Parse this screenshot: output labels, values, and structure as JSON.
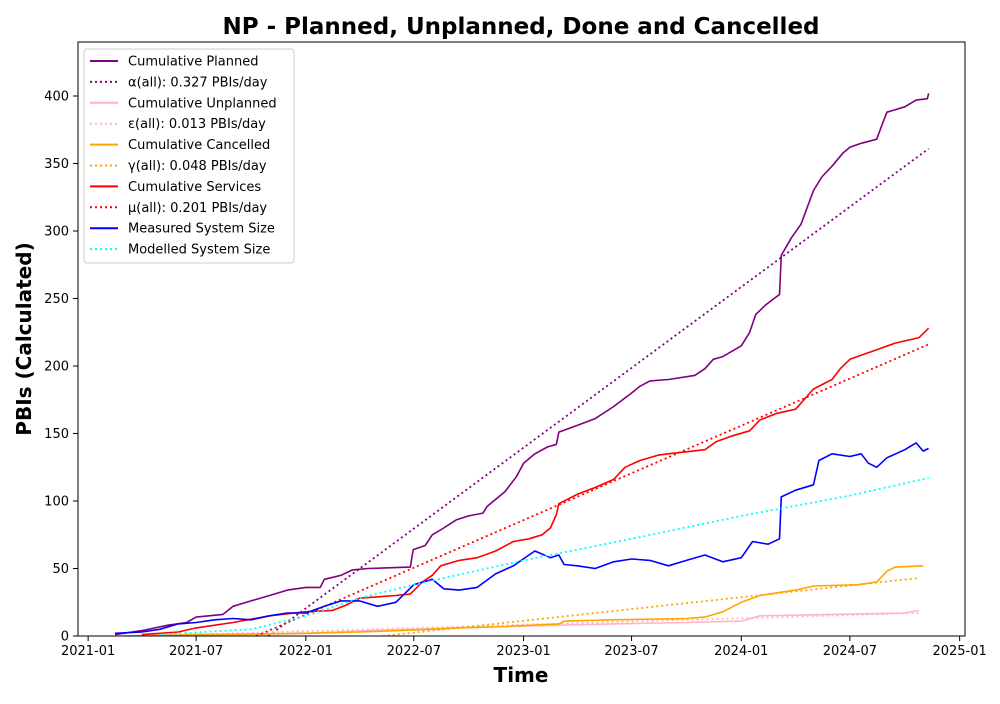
{
  "chart_data": {
    "type": "line",
    "title": "NP - Planned, Unplanned, Done  and Cancelled",
    "xlabel": "Time",
    "ylabel": "PBIs (Calculated)",
    "x_ticks": [
      "2021-01",
      "2021-07",
      "2022-01",
      "2022-07",
      "2023-01",
      "2023-07",
      "2024-01",
      "2024-07",
      "2025-01"
    ],
    "y_ticks": [
      "0",
      "50",
      "100",
      "150",
      "200",
      "250",
      "300",
      "350",
      "400"
    ],
    "xlim": [
      "2020-12-15",
      "2025-01-10"
    ],
    "ylim": [
      0,
      440
    ],
    "grid": false,
    "legend_position": "top-left",
    "series": [
      {
        "name": "Cumulative Planned",
        "color": "#800080",
        "style": "solid",
        "points": [
          [
            "2021-02-15",
            1
          ],
          [
            "2021-04-01",
            4
          ],
          [
            "2021-05-15",
            8
          ],
          [
            "2021-06-15",
            10
          ],
          [
            "2021-07-01",
            14
          ],
          [
            "2021-08-15",
            16
          ],
          [
            "2021-09-01",
            22
          ],
          [
            "2021-10-01",
            26
          ],
          [
            "2021-11-01",
            30
          ],
          [
            "2021-12-01",
            34
          ],
          [
            "2022-01-01",
            36
          ],
          [
            "2022-01-25",
            36
          ],
          [
            "2022-02-01",
            42
          ],
          [
            "2022-03-01",
            45
          ],
          [
            "2022-03-20",
            49
          ],
          [
            "2022-04-15",
            50
          ],
          [
            "2022-06-25",
            51
          ],
          [
            "2022-06-30",
            64
          ],
          [
            "2022-07-20",
            67
          ],
          [
            "2022-08-01",
            75
          ],
          [
            "2022-08-20",
            80
          ],
          [
            "2022-09-10",
            86
          ],
          [
            "2022-10-01",
            89
          ],
          [
            "2022-10-25",
            91
          ],
          [
            "2022-11-01",
            96
          ],
          [
            "2022-12-01",
            107
          ],
          [
            "2022-12-20",
            118
          ],
          [
            "2023-01-01",
            128
          ],
          [
            "2023-01-20",
            135
          ],
          [
            "2023-02-10",
            140
          ],
          [
            "2023-02-25",
            142
          ],
          [
            "2023-03-01",
            151
          ],
          [
            "2023-04-01",
            156
          ],
          [
            "2023-05-01",
            161
          ],
          [
            "2023-06-01",
            170
          ],
          [
            "2023-07-01",
            180
          ],
          [
            "2023-07-15",
            185
          ],
          [
            "2023-08-01",
            189
          ],
          [
            "2023-09-01",
            190
          ],
          [
            "2023-10-15",
            193
          ],
          [
            "2023-11-01",
            198
          ],
          [
            "2023-11-15",
            205
          ],
          [
            "2023-12-01",
            207
          ],
          [
            "2024-01-01",
            215
          ],
          [
            "2024-01-15",
            225
          ],
          [
            "2024-01-25",
            238
          ],
          [
            "2024-02-10",
            245
          ],
          [
            "2024-02-25",
            250
          ],
          [
            "2024-03-05",
            253
          ],
          [
            "2024-03-08",
            282
          ],
          [
            "2024-03-25",
            295
          ],
          [
            "2024-04-10",
            305
          ],
          [
            "2024-05-01",
            330
          ],
          [
            "2024-05-15",
            340
          ],
          [
            "2024-06-01",
            348
          ],
          [
            "2024-06-20",
            358
          ],
          [
            "2024-07-01",
            362
          ],
          [
            "2024-07-20",
            365
          ],
          [
            "2024-08-15",
            368
          ],
          [
            "2024-08-25",
            380
          ],
          [
            "2024-09-01",
            388
          ],
          [
            "2024-10-01",
            392
          ],
          [
            "2024-10-20",
            397
          ],
          [
            "2024-11-08",
            398
          ],
          [
            "2024-11-10",
            402
          ]
        ]
      },
      {
        "name": "α(all): 0.327 PBIs/day",
        "color": "#800080",
        "style": "dotted",
        "points": [
          [
            "2021-10-30",
            0
          ],
          [
            "2024-11-10",
            361
          ]
        ]
      },
      {
        "name": "Cumulative Unplanned",
        "color": "#ffb6c1",
        "style": "solid",
        "points": [
          [
            "2021-04-01",
            0
          ],
          [
            "2021-10-01",
            1
          ],
          [
            "2022-01-01",
            2
          ],
          [
            "2022-04-15",
            4
          ],
          [
            "2022-07-01",
            5
          ],
          [
            "2022-09-01",
            6
          ],
          [
            "2022-12-01",
            7
          ],
          [
            "2023-03-01",
            8
          ],
          [
            "2023-06-01",
            9
          ],
          [
            "2023-10-01",
            10
          ],
          [
            "2024-01-01",
            11
          ],
          [
            "2024-02-01",
            15
          ],
          [
            "2024-06-01",
            16
          ],
          [
            "2024-10-01",
            17
          ],
          [
            "2024-10-25",
            19
          ]
        ]
      },
      {
        "name": "ε(all): 0.013 PBIs/day",
        "color": "#ffb6c1",
        "style": "dotted",
        "points": [
          [
            "2021-04-01",
            0
          ],
          [
            "2024-10-25",
            17
          ]
        ]
      },
      {
        "name": "Cumulative Cancelled",
        "color": "#ffa500",
        "style": "solid",
        "points": [
          [
            "2021-03-01",
            0
          ],
          [
            "2021-07-01",
            1
          ],
          [
            "2022-01-01",
            2
          ],
          [
            "2022-04-01",
            3
          ],
          [
            "2022-08-01",
            5
          ],
          [
            "2022-09-15",
            6
          ],
          [
            "2022-12-01",
            7
          ],
          [
            "2023-03-01",
            9
          ],
          [
            "2023-03-10",
            11
          ],
          [
            "2023-06-01",
            12
          ],
          [
            "2023-10-01",
            13
          ],
          [
            "2023-11-01",
            14
          ],
          [
            "2023-12-01",
            18
          ],
          [
            "2024-01-01",
            25
          ],
          [
            "2024-02-01",
            30
          ],
          [
            "2024-03-01",
            32
          ],
          [
            "2024-04-01",
            34
          ],
          [
            "2024-05-01",
            37
          ],
          [
            "2024-07-15",
            38
          ],
          [
            "2024-08-15",
            40
          ],
          [
            "2024-09-01",
            48
          ],
          [
            "2024-09-15",
            51
          ],
          [
            "2024-11-01",
            52
          ]
        ]
      },
      {
        "name": "γ(all): 0.048 PBIs/day",
        "color": "#ffa500",
        "style": "dotted",
        "points": [
          [
            "2022-05-10",
            0
          ],
          [
            "2024-10-25",
            43
          ]
        ]
      },
      {
        "name": "Cumulative Services",
        "color": "#ff0000",
        "style": "solid",
        "points": [
          [
            "2021-04-01",
            1
          ],
          [
            "2021-06-01",
            3
          ],
          [
            "2021-07-01",
            6
          ],
          [
            "2021-09-01",
            10
          ],
          [
            "2021-11-01",
            15
          ],
          [
            "2022-01-01",
            18
          ],
          [
            "2022-02-15",
            19
          ],
          [
            "2022-03-10",
            23
          ],
          [
            "2022-04-01",
            28
          ],
          [
            "2022-06-01",
            30
          ],
          [
            "2022-06-25",
            31
          ],
          [
            "2022-07-15",
            40
          ],
          [
            "2022-08-01",
            45
          ],
          [
            "2022-08-15",
            52
          ],
          [
            "2022-09-15",
            56
          ],
          [
            "2022-10-15",
            58
          ],
          [
            "2022-11-15",
            63
          ],
          [
            "2022-12-15",
            70
          ],
          [
            "2023-01-10",
            72
          ],
          [
            "2023-02-01",
            75
          ],
          [
            "2023-02-15",
            80
          ],
          [
            "2023-02-25",
            90
          ],
          [
            "2023-03-01",
            98
          ],
          [
            "2023-04-01",
            105
          ],
          [
            "2023-05-01",
            110
          ],
          [
            "2023-06-01",
            116
          ],
          [
            "2023-06-20",
            125
          ],
          [
            "2023-07-15",
            130
          ],
          [
            "2023-08-15",
            134
          ],
          [
            "2023-09-01",
            135
          ],
          [
            "2023-11-01",
            138
          ],
          [
            "2023-11-20",
            144
          ],
          [
            "2023-12-15",
            148
          ],
          [
            "2024-01-15",
            152
          ],
          [
            "2024-02-01",
            160
          ],
          [
            "2024-03-01",
            165
          ],
          [
            "2024-04-01",
            168
          ],
          [
            "2024-04-15",
            175
          ],
          [
            "2024-05-01",
            183
          ],
          [
            "2024-06-01",
            190
          ],
          [
            "2024-06-15",
            198
          ],
          [
            "2024-07-01",
            205
          ],
          [
            "2024-07-20",
            208
          ],
          [
            "2024-08-15",
            212
          ],
          [
            "2024-09-15",
            217
          ],
          [
            "2024-10-25",
            221
          ],
          [
            "2024-11-10",
            228
          ]
        ]
      },
      {
        "name": "μ(all): 0.201 PBIs/day",
        "color": "#ff0000",
        "style": "dotted",
        "points": [
          [
            "2021-10-10",
            0
          ],
          [
            "2024-11-10",
            216
          ]
        ]
      },
      {
        "name": "Measured System Size",
        "color": "#0000ff",
        "style": "solid",
        "points": [
          [
            "2021-02-15",
            2
          ],
          [
            "2021-04-01",
            3
          ],
          [
            "2021-05-01",
            5
          ],
          [
            "2021-06-01",
            9
          ],
          [
            "2021-07-01",
            10
          ],
          [
            "2021-08-01",
            12
          ],
          [
            "2021-09-01",
            13
          ],
          [
            "2021-10-01",
            12
          ],
          [
            "2021-11-01",
            15
          ],
          [
            "2021-12-01",
            17
          ],
          [
            "2022-01-01",
            17
          ],
          [
            "2022-02-01",
            22
          ],
          [
            "2022-03-01",
            26
          ],
          [
            "2022-04-01",
            26
          ],
          [
            "2022-05-01",
            22
          ],
          [
            "2022-06-01",
            25
          ],
          [
            "2022-07-01",
            38
          ],
          [
            "2022-08-01",
            42
          ],
          [
            "2022-08-20",
            35
          ],
          [
            "2022-09-15",
            34
          ],
          [
            "2022-10-15",
            36
          ],
          [
            "2022-11-15",
            46
          ],
          [
            "2022-12-15",
            52
          ],
          [
            "2023-01-10",
            60
          ],
          [
            "2023-01-20",
            63
          ],
          [
            "2023-02-15",
            58
          ],
          [
            "2023-03-01",
            60
          ],
          [
            "2023-03-10",
            53
          ],
          [
            "2023-04-01",
            52
          ],
          [
            "2023-05-01",
            50
          ],
          [
            "2023-06-01",
            55
          ],
          [
            "2023-07-01",
            57
          ],
          [
            "2023-08-01",
            56
          ],
          [
            "2023-09-01",
            52
          ],
          [
            "2023-10-01",
            56
          ],
          [
            "2023-11-01",
            60
          ],
          [
            "2023-12-01",
            55
          ],
          [
            "2024-01-01",
            58
          ],
          [
            "2024-01-20",
            70
          ],
          [
            "2024-02-15",
            68
          ],
          [
            "2024-03-05",
            72
          ],
          [
            "2024-03-08",
            103
          ],
          [
            "2024-04-01",
            108
          ],
          [
            "2024-05-01",
            112
          ],
          [
            "2024-05-10",
            130
          ],
          [
            "2024-06-01",
            135
          ],
          [
            "2024-07-01",
            133
          ],
          [
            "2024-07-20",
            135
          ],
          [
            "2024-08-01",
            128
          ],
          [
            "2024-08-15",
            125
          ],
          [
            "2024-09-01",
            132
          ],
          [
            "2024-10-01",
            138
          ],
          [
            "2024-10-20",
            143
          ],
          [
            "2024-11-01",
            137
          ],
          [
            "2024-11-10",
            139
          ]
        ]
      },
      {
        "name": "Modelled System Size",
        "color": "#00ffff",
        "style": "dotted",
        "points": [
          [
            "2021-05-01",
            1
          ],
          [
            "2021-10-01",
            5
          ],
          [
            "2022-01-01",
            15
          ],
          [
            "2022-04-01",
            28
          ],
          [
            "2022-07-01",
            38
          ],
          [
            "2022-10-01",
            47
          ],
          [
            "2023-01-01",
            56
          ],
          [
            "2023-07-01",
            72
          ],
          [
            "2024-01-01",
            89
          ],
          [
            "2024-07-01",
            104
          ],
          [
            "2024-11-10",
            117
          ]
        ]
      }
    ]
  }
}
